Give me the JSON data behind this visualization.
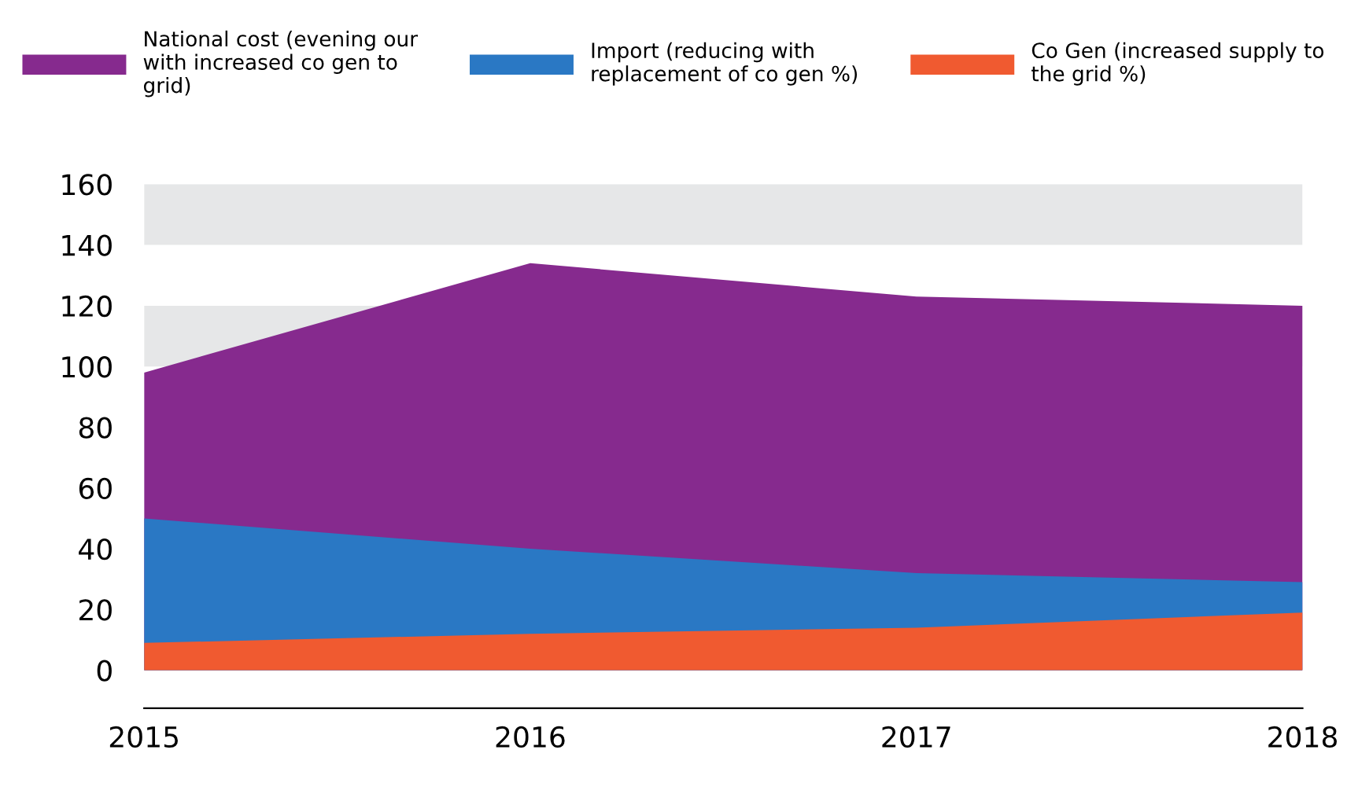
{
  "chart_data": {
    "type": "area",
    "categories": [
      "2015",
      "2016",
      "2017",
      "2018"
    ],
    "series": [
      {
        "name": "National cost (evening our with increased co gen to grid)",
        "color": "#862a8e",
        "values": [
          98,
          134,
          123,
          120
        ]
      },
      {
        "name": "Import (reducing with replacement of co gen %)",
        "color": "#2a78c4",
        "values": [
          50,
          40,
          32,
          29
        ]
      },
      {
        "name": "Co Gen (increased supply to the grid %)",
        "color": "#f05a30",
        "values": [
          9,
          12,
          14,
          19
        ]
      }
    ],
    "ylim": [
      -12.5,
      160
    ],
    "yticks": [
      0,
      20,
      40,
      60,
      80,
      100,
      120,
      140,
      160
    ],
    "bands": [
      {
        "axis": "y",
        "from": 140,
        "to": 160,
        "color": "#e6e7e8"
      },
      {
        "axis": "y",
        "from": 100,
        "to": 120,
        "color": "#e6e7e8"
      }
    ],
    "grid": false,
    "legend": "top"
  }
}
